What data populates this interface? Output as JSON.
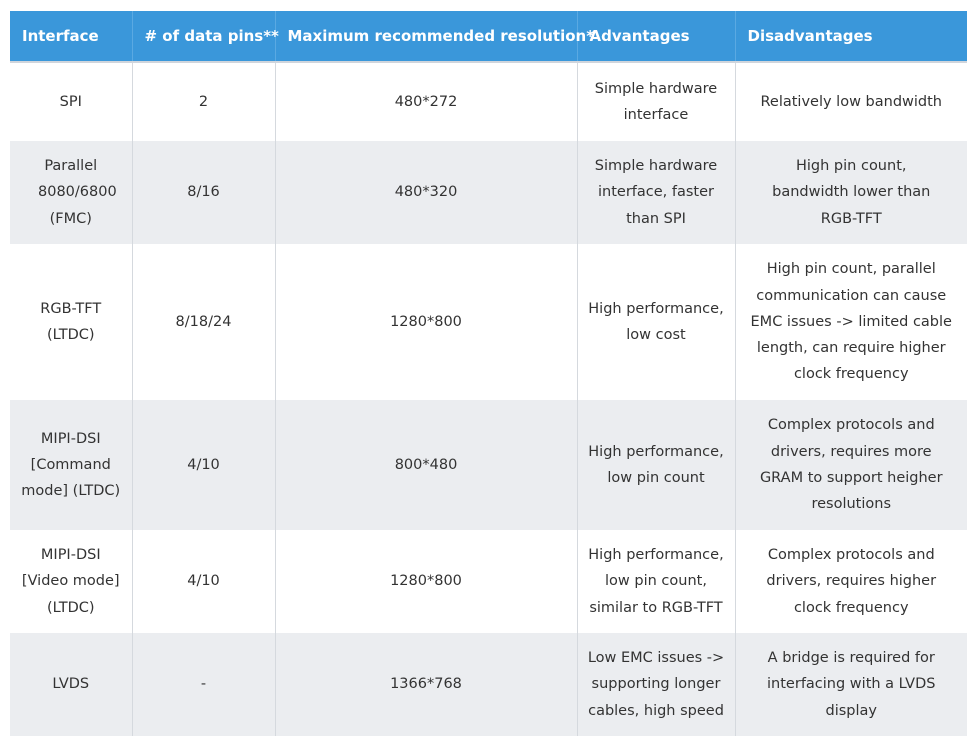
{
  "table": {
    "headers": [
      "Interface",
      "# of data pins**",
      "Maximum recommended resolution*",
      "Advantages",
      "Disadvantages"
    ],
    "rows": [
      [
        "SPI",
        "2",
        "480*272",
        "Simple hardware interface",
        "Relatively low bandwidth"
      ],
      [
        "Parallel 8080/6800 (FMC)",
        "8/16",
        "480*320",
        "Simple hardware interface, faster than SPI",
        "High pin count, bandwidth lower than RGB-TFT"
      ],
      [
        "RGB-TFT (LTDC)",
        "8/18/24",
        "1280*800",
        "High performance, low cost",
        "High pin count, parallel communication can cause EMC issues -> limited cable length, can require higher clock frequency"
      ],
      [
        "MIPI-DSI [Command mode] (LTDC)",
        "4/10",
        "800*480",
        "High performance, low pin count",
        "Complex protocols and drivers, requires more GRAM to support heigher resolutions"
      ],
      [
        "MIPI-DSI [Video mode] (LTDC)",
        "4/10",
        "1280*800",
        "High performance, low pin count, similar to RGB-TFT",
        "Complex protocols and drivers, requires higher clock frequency"
      ],
      [
        "LVDS",
        "-",
        "1366*768",
        "Low EMC issues -> supporting longer cables, high speed",
        "A bridge is required for interfacing with a LVDS display"
      ]
    ]
  }
}
